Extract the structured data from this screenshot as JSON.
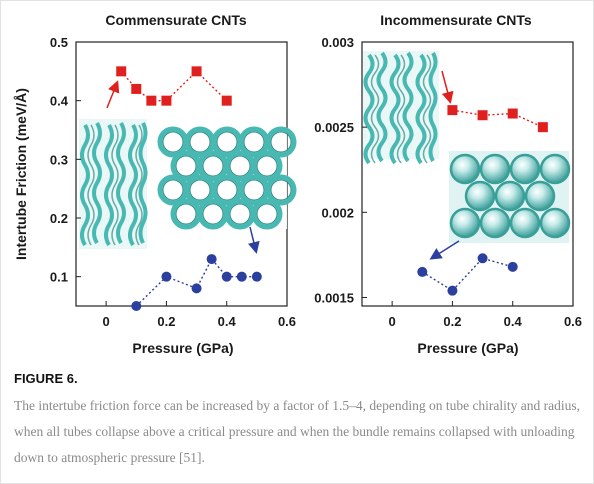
{
  "figure": {
    "label": "FIGURE 6.",
    "caption": "The intertube friction force can be increased by a factor of 1.5–4, depending on tube chirality and radius, when all tubes collapse above a critical pressure and when the bundle remains collapsed with unloading down to atmospheric pressure [51]."
  },
  "colors": {
    "red_series": "#e0201e",
    "blue_series": "#2b3f9e",
    "cnt_teal": "#48b8b2"
  },
  "chart_data": [
    {
      "type": "scatter",
      "title": "Commensurate CNTs",
      "xlabel": "Pressure (GPa)",
      "ylabel": "Intertube Friction (meV/Å)",
      "xlim": [
        -0.1,
        0.6
      ],
      "ylim": [
        0.05,
        0.5
      ],
      "xticks": [
        "0",
        "0.2",
        "0.4",
        "0.6"
      ],
      "yticks": [
        "0.1",
        "0.2",
        "0.3",
        "0.4",
        "0.5"
      ],
      "series": [
        {
          "marker": "square",
          "color": "#e0201e",
          "x": [
            0.05,
            0.1,
            0.15,
            0.2,
            0.3,
            0.4
          ],
          "y": [
            0.45,
            0.42,
            0.4,
            0.4,
            0.45,
            0.4
          ]
        },
        {
          "marker": "circle",
          "color": "#2b3f9e",
          "x": [
            0.1,
            0.2,
            0.3,
            0.35,
            0.4,
            0.45,
            0.5
          ],
          "y": [
            0.05,
            0.1,
            0.08,
            0.13,
            0.1,
            0.1,
            0.1
          ]
        }
      ]
    },
    {
      "type": "scatter",
      "title": "Incommensurate CNTs",
      "xlabel": "Pressure (GPa)",
      "ylabel": "",
      "xlim": [
        -0.1,
        0.6
      ],
      "ylim": [
        0.00145,
        0.003
      ],
      "xticks": [
        "0",
        "0.2",
        "0.4",
        "0.6"
      ],
      "yticks": [
        "0.0015",
        "0.002",
        "0.0025",
        "0.003"
      ],
      "series": [
        {
          "marker": "square",
          "color": "#e0201e",
          "x": [
            0.2,
            0.3,
            0.4,
            0.5
          ],
          "y": [
            0.0026,
            0.00257,
            0.00258,
            0.0025
          ]
        },
        {
          "marker": "circle",
          "color": "#2b3f9e",
          "x": [
            0.1,
            0.2,
            0.3,
            0.4
          ],
          "y": [
            0.00165,
            0.00154,
            0.00173,
            0.00168
          ]
        }
      ]
    }
  ]
}
